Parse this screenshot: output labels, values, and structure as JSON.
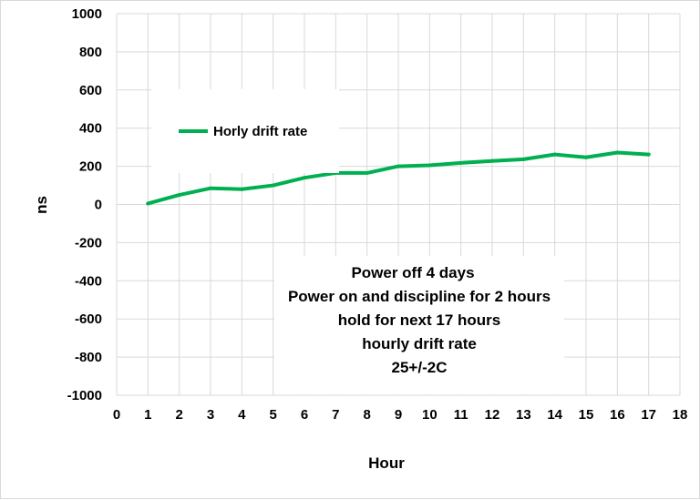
{
  "chart_data": {
    "type": "line",
    "title": "",
    "xlabel": "Hour",
    "ylabel": "ns",
    "xlim": [
      0,
      18
    ],
    "ylim": [
      -1000,
      1000
    ],
    "x_ticks": [
      0,
      1,
      2,
      3,
      4,
      5,
      6,
      7,
      8,
      9,
      10,
      11,
      12,
      13,
      14,
      15,
      16,
      17,
      18
    ],
    "y_ticks": [
      1000,
      800,
      600,
      400,
      200,
      0,
      -200,
      -400,
      -600,
      -800,
      -1000
    ],
    "y_tick_labels": [
      "1000",
      "800",
      "600",
      "400",
      "200",
      "0",
      "-200",
      "-400",
      "-600",
      "-800",
      "-1000"
    ],
    "grid": true,
    "legend_position": "upper-left",
    "series": [
      {
        "name": "Horly drift rate",
        "color": "#00b050",
        "x": [
          1,
          2,
          3,
          4,
          5,
          6,
          7,
          8,
          9,
          10,
          11,
          12,
          13,
          14,
          15,
          16,
          17
        ],
        "values": [
          5,
          50,
          85,
          80,
          100,
          140,
          165,
          165,
          200,
          205,
          218,
          228,
          237,
          262,
          247,
          272,
          262
        ]
      }
    ],
    "annotations": [
      "Power off 4 days",
      "Power on and discipline for 2 hours",
      "hold for next 17 hours",
      "hourly drift rate",
      "25+/-2C"
    ]
  }
}
